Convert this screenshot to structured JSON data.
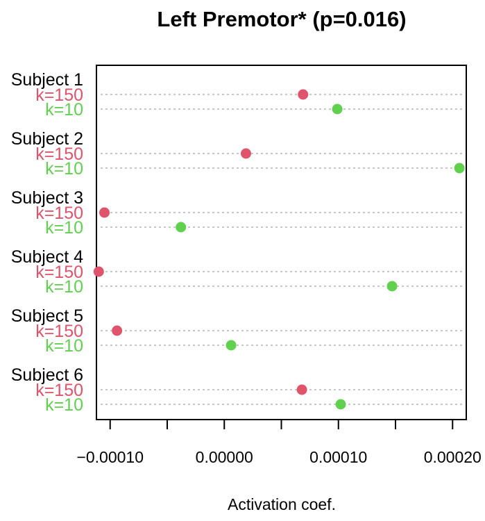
{
  "chart_data": {
    "type": "dotchart",
    "title": "Left Premotor* (p=0.016)",
    "xlabel": "Activation coef.",
    "ylabel": "",
    "xlim": [
      -0.000112,
      0.000212
    ],
    "x_ticks": [
      -0.0001,
      -5e-05,
      0.0,
      5e-05,
      0.0001,
      0.00015,
      0.0002
    ],
    "x_tick_labels": [
      "−0.00010",
      "",
      "0.00000",
      "",
      "0.00010",
      "",
      "0.00020"
    ],
    "grid": "dotted horizontal lines",
    "series_colors": {
      "k=150": "#DF536B",
      "k=10": "#61D04F"
    },
    "groups": [
      {
        "label": "Subject 1",
        "rows": [
          {
            "label": "k=150",
            "value": 6.9e-05
          },
          {
            "label": "k=10",
            "value": 9.9e-05
          }
        ]
      },
      {
        "label": "Subject 2",
        "rows": [
          {
            "label": "k=150",
            "value": 1.9e-05
          },
          {
            "label": "k=10",
            "value": 0.000206
          }
        ]
      },
      {
        "label": "Subject 3",
        "rows": [
          {
            "label": "k=150",
            "value": -0.000105
          },
          {
            "label": "k=10",
            "value": -3.8e-05
          }
        ]
      },
      {
        "label": "Subject 4",
        "rows": [
          {
            "label": "k=150",
            "value": -0.00011
          },
          {
            "label": "k=10",
            "value": 0.000147
          }
        ]
      },
      {
        "label": "Subject 5",
        "rows": [
          {
            "label": "k=150",
            "value": -9.4e-05
          },
          {
            "label": "k=10",
            "value": 6e-06
          }
        ]
      },
      {
        "label": "Subject 6",
        "rows": [
          {
            "label": "k=150",
            "value": 6.8e-05
          },
          {
            "label": "k=10",
            "value": 0.000102
          }
        ]
      }
    ]
  }
}
